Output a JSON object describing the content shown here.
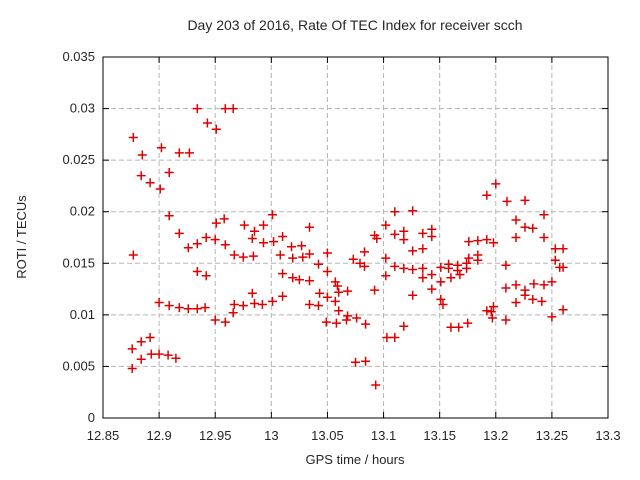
{
  "chart_data": {
    "type": "scatter",
    "title": "Day 203 of 2016, Rate Of TEC Index for receiver scch",
    "xlabel": "GPS time / hours",
    "ylabel": "ROTI / TECUs",
    "xlim": [
      12.85,
      13.3
    ],
    "ylim": [
      0,
      0.035
    ],
    "xticks": [
      {
        "v": 12.85,
        "label": "12.85"
      },
      {
        "v": 12.9,
        "label": "12.9"
      },
      {
        "v": 12.95,
        "label": "12.95"
      },
      {
        "v": 13.0,
        "label": "13"
      },
      {
        "v": 13.05,
        "label": "13.05"
      },
      {
        "v": 13.1,
        "label": "13.1"
      },
      {
        "v": 13.15,
        "label": "13.15"
      },
      {
        "v": 13.2,
        "label": "13.2"
      },
      {
        "v": 13.25,
        "label": "13.25"
      },
      {
        "v": 13.3,
        "label": "13.3"
      }
    ],
    "yticks": [
      {
        "v": 0,
        "label": "0"
      },
      {
        "v": 0.005,
        "label": "0.005"
      },
      {
        "v": 0.01,
        "label": "0.01"
      },
      {
        "v": 0.015,
        "label": "0.015"
      },
      {
        "v": 0.02,
        "label": "0.02"
      },
      {
        "v": 0.025,
        "label": "0.025"
      },
      {
        "v": 0.03,
        "label": "0.03"
      },
      {
        "v": 0.035,
        "label": "0.035"
      }
    ],
    "grid": "dashed",
    "legend": "none",
    "marker": {
      "shape": "plus",
      "color": "#e00000",
      "size": 9
    },
    "grid_color": "#b5b5b5",
    "axis_color": "#000000",
    "text_color": "#262626",
    "background": "#ffffff",
    "points": [
      [
        12.876,
        0.0048
      ],
      [
        12.876,
        0.0067
      ],
      [
        12.877,
        0.0158
      ],
      [
        12.877,
        0.0272
      ],
      [
        12.884,
        0.0057
      ],
      [
        12.884,
        0.0074
      ],
      [
        12.884,
        0.0235
      ],
      [
        12.885,
        0.0255
      ],
      [
        12.892,
        0.0078
      ],
      [
        12.892,
        0.0228
      ],
      [
        12.893,
        0.0062
      ],
      [
        12.9,
        0.0062
      ],
      [
        12.9,
        0.0112
      ],
      [
        12.901,
        0.0222
      ],
      [
        12.902,
        0.0262
      ],
      [
        12.908,
        0.0061
      ],
      [
        12.909,
        0.0109
      ],
      [
        12.909,
        0.0196
      ],
      [
        12.909,
        0.0238
      ],
      [
        12.915,
        0.0058
      ],
      [
        12.918,
        0.0107
      ],
      [
        12.918,
        0.0179
      ],
      [
        12.918,
        0.0257
      ],
      [
        12.926,
        0.0106
      ],
      [
        12.926,
        0.0165
      ],
      [
        12.927,
        0.0257
      ],
      [
        12.934,
        0.0106
      ],
      [
        12.934,
        0.0142
      ],
      [
        12.934,
        0.0169
      ],
      [
        12.934,
        0.03
      ],
      [
        12.941,
        0.0107
      ],
      [
        12.942,
        0.0138
      ],
      [
        12.942,
        0.0175
      ],
      [
        12.943,
        0.0286
      ],
      [
        12.95,
        0.0095
      ],
      [
        12.95,
        0.0173
      ],
      [
        12.951,
        0.0189
      ],
      [
        12.951,
        0.028
      ],
      [
        12.958,
        0.0193
      ],
      [
        12.959,
        0.0093
      ],
      [
        12.959,
        0.0168
      ],
      [
        12.959,
        0.03
      ],
      [
        12.966,
        0.0102
      ],
      [
        12.966,
        0.03
      ],
      [
        12.967,
        0.011
      ],
      [
        12.967,
        0.0158
      ],
      [
        12.975,
        0.0109
      ],
      [
        12.975,
        0.0156
      ],
      [
        12.976,
        0.0187
      ],
      [
        12.983,
        0.0121
      ],
      [
        12.983,
        0.0174
      ],
      [
        12.984,
        0.0157
      ],
      [
        12.985,
        0.0111
      ],
      [
        12.985,
        0.0181
      ],
      [
        12.992,
        0.011
      ],
      [
        12.993,
        0.017
      ],
      [
        12.993,
        0.0187
      ],
      [
        13.001,
        0.0113
      ],
      [
        13.001,
        0.0197
      ],
      [
        13.002,
        0.0171
      ],
      [
        13.008,
        0.0158
      ],
      [
        13.01,
        0.0118
      ],
      [
        13.01,
        0.014
      ],
      [
        13.01,
        0.0176
      ],
      [
        13.018,
        0.0166
      ],
      [
        13.019,
        0.0136
      ],
      [
        13.019,
        0.0155
      ],
      [
        13.025,
        0.0134
      ],
      [
        13.027,
        0.0167
      ],
      [
        13.028,
        0.0156
      ],
      [
        13.034,
        0.011
      ],
      [
        13.034,
        0.0133
      ],
      [
        13.034,
        0.0159
      ],
      [
        13.034,
        0.0185
      ],
      [
        13.042,
        0.0109
      ],
      [
        13.042,
        0.0149
      ],
      [
        13.043,
        0.0121
      ],
      [
        13.049,
        0.0093
      ],
      [
        13.05,
        0.0117
      ],
      [
        13.05,
        0.0142
      ],
      [
        13.05,
        0.016
      ],
      [
        13.057,
        0.0113
      ],
      [
        13.057,
        0.0132
      ],
      [
        13.058,
        0.0092
      ],
      [
        13.059,
        0.0128
      ],
      [
        13.06,
        0.0104
      ],
      [
        13.06,
        0.0122
      ],
      [
        13.067,
        0.0095
      ],
      [
        13.068,
        0.0099
      ],
      [
        13.068,
        0.0123
      ],
      [
        13.073,
        0.0154
      ],
      [
        13.075,
        0.0054
      ],
      [
        13.076,
        0.0097
      ],
      [
        13.079,
        0.015
      ],
      [
        13.083,
        0.0147
      ],
      [
        13.083,
        0.0161
      ],
      [
        13.084,
        0.0055
      ],
      [
        13.084,
        0.0091
      ],
      [
        13.092,
        0.0124
      ],
      [
        13.092,
        0.0177
      ],
      [
        13.093,
        0.0032
      ],
      [
        13.094,
        0.0174
      ],
      [
        13.102,
        0.0138
      ],
      [
        13.102,
        0.0155
      ],
      [
        13.102,
        0.0187
      ],
      [
        13.103,
        0.0078
      ],
      [
        13.11,
        0.0078
      ],
      [
        13.11,
        0.0147
      ],
      [
        13.11,
        0.0178
      ],
      [
        13.11,
        0.02
      ],
      [
        13.118,
        0.0089
      ],
      [
        13.118,
        0.0145
      ],
      [
        13.118,
        0.0173
      ],
      [
        13.118,
        0.0181
      ],
      [
        13.126,
        0.0119
      ],
      [
        13.126,
        0.0144
      ],
      [
        13.126,
        0.0162
      ],
      [
        13.126,
        0.0201
      ],
      [
        13.135,
        0.0136
      ],
      [
        13.135,
        0.0145
      ],
      [
        13.135,
        0.0164
      ],
      [
        13.135,
        0.0179
      ],
      [
        13.143,
        0.0125
      ],
      [
        13.143,
        0.0139
      ],
      [
        13.143,
        0.0176
      ],
      [
        13.143,
        0.0183
      ],
      [
        13.151,
        0.0115
      ],
      [
        13.151,
        0.0132
      ],
      [
        13.151,
        0.0146
      ],
      [
        13.153,
        0.011
      ],
      [
        13.158,
        0.0145
      ],
      [
        13.158,
        0.0149
      ],
      [
        13.16,
        0.0088
      ],
      [
        13.16,
        0.0136
      ],
      [
        13.166,
        0.0143
      ],
      [
        13.166,
        0.0148
      ],
      [
        13.167,
        0.0088
      ],
      [
        13.168,
        0.0139
      ],
      [
        13.174,
        0.0145
      ],
      [
        13.174,
        0.015
      ],
      [
        13.175,
        0.0092
      ],
      [
        13.176,
        0.0155
      ],
      [
        13.176,
        0.0171
      ],
      [
        13.184,
        0.0153
      ],
      [
        13.184,
        0.0158
      ],
      [
        13.184,
        0.0172
      ],
      [
        13.192,
        0.0104
      ],
      [
        13.192,
        0.0173
      ],
      [
        13.192,
        0.0216
      ],
      [
        13.196,
        0.0103
      ],
      [
        13.197,
        0.0097
      ],
      [
        13.198,
        0.0108
      ],
      [
        13.198,
        0.017
      ],
      [
        13.2,
        0.0227
      ],
      [
        13.209,
        0.0095
      ],
      [
        13.209,
        0.0126
      ],
      [
        13.209,
        0.0148
      ],
      [
        13.21,
        0.021
      ],
      [
        13.218,
        0.0112
      ],
      [
        13.218,
        0.0129
      ],
      [
        13.218,
        0.0175
      ],
      [
        13.218,
        0.0192
      ],
      [
        13.226,
        0.0119
      ],
      [
        13.226,
        0.0124
      ],
      [
        13.226,
        0.0185
      ],
      [
        13.226,
        0.0211
      ],
      [
        13.233,
        0.0115
      ],
      [
        13.233,
        0.0184
      ],
      [
        13.234,
        0.013
      ],
      [
        13.241,
        0.0113
      ],
      [
        13.243,
        0.0129
      ],
      [
        13.243,
        0.0175
      ],
      [
        13.243,
        0.0197
      ],
      [
        13.25,
        0.0098
      ],
      [
        13.25,
        0.0132
      ],
      [
        13.253,
        0.0153
      ],
      [
        13.253,
        0.0164
      ],
      [
        13.257,
        0.0146
      ],
      [
        13.26,
        0.0105
      ],
      [
        13.26,
        0.0146
      ],
      [
        13.26,
        0.0164
      ]
    ]
  }
}
